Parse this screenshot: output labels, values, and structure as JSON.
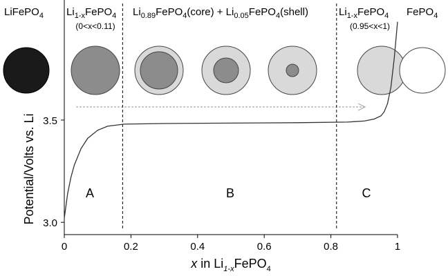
{
  "chart_data": {
    "type": "line",
    "ylabel": "Potential/Volts vs. Li",
    "xlabel_parts": [
      "x",
      " in Li",
      "1-x",
      "FePO",
      "4"
    ],
    "x": [
      0,
      0.005,
      0.01,
      0.02,
      0.03,
      0.05,
      0.07,
      0.1,
      0.13,
      0.18,
      0.3,
      0.5,
      0.7,
      0.85,
      0.9,
      0.93,
      0.95,
      0.96,
      0.97,
      0.98,
      0.99,
      1.0
    ],
    "series": [
      {
        "color": "#333333",
        "values": [
          3.02,
          3.08,
          3.14,
          3.22,
          3.28,
          3.36,
          3.41,
          3.45,
          3.47,
          3.48,
          3.483,
          3.485,
          3.487,
          3.49,
          3.495,
          3.505,
          3.52,
          3.54,
          3.58,
          3.66,
          3.8,
          3.98
        ]
      }
    ],
    "xlim": [
      0,
      1
    ],
    "ylim": [
      2.94,
      4.08
    ],
    "xticks": [
      0,
      0.2,
      0.4,
      0.6,
      0.8,
      1
    ],
    "yticks": [
      {
        "value": 3,
        "label": "3.0"
      },
      {
        "value": 3.5,
        "label": "3.5"
      }
    ],
    "boundaries": [
      0.175,
      0.817
    ],
    "annotations": {
      "left_end": [
        "LiFePO",
        "4"
      ],
      "right_end": [
        "FePO",
        "4"
      ],
      "phase1": [
        "Li",
        "1-x",
        "FePO",
        "4"
      ],
      "phase1_range": "(0<x<0.11)",
      "phase2": [
        "Li",
        "0.89",
        "FePO",
        "4",
        "(core) + Li",
        "0.05",
        "FePO",
        "4",
        "(shell)"
      ],
      "phase3": [
        "Li",
        "1-x",
        "FePO",
        "4"
      ],
      "phase3_range": "(0.95<x<1)",
      "regions": [
        "A",
        "B",
        "C"
      ]
    }
  }
}
